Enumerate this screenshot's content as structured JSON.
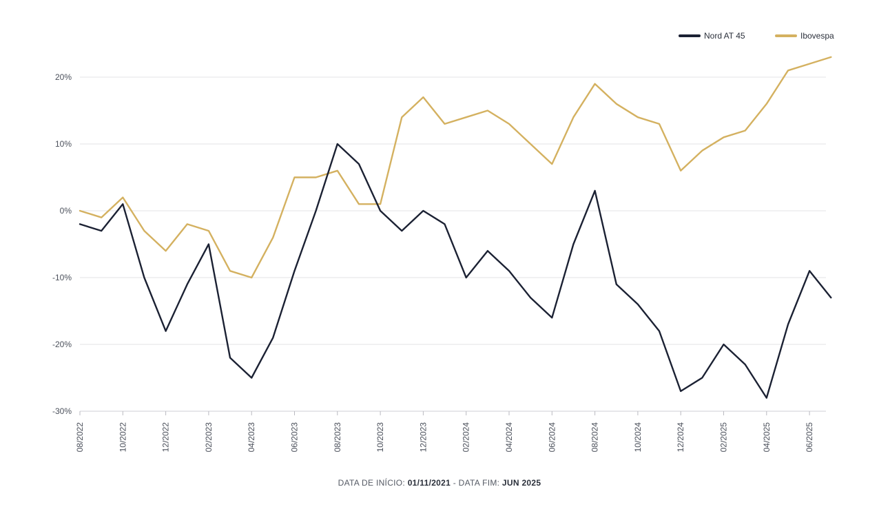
{
  "chart_data": {
    "type": "line",
    "x": [
      "08/2022",
      "09/2022",
      "10/2022",
      "11/2022",
      "12/2022",
      "01/2023",
      "02/2023",
      "03/2023",
      "04/2023",
      "05/2023",
      "06/2023",
      "07/2023",
      "08/2023",
      "09/2023",
      "10/2023",
      "11/2023",
      "12/2023",
      "01/2024",
      "02/2024",
      "03/2024",
      "04/2024",
      "05/2024",
      "06/2024",
      "07/2024",
      "08/2024",
      "09/2024",
      "10/2024",
      "11/2024",
      "12/2024",
      "01/2025",
      "02/2025",
      "03/2025",
      "04/2025",
      "05/2025",
      "06/2025",
      "07/2025"
    ],
    "x_tick_labels": [
      "08/2022",
      "10/2022",
      "12/2022",
      "02/2023",
      "04/2023",
      "06/2023",
      "08/2023",
      "10/2023",
      "12/2023",
      "02/2024",
      "04/2024",
      "06/2024",
      "08/2024",
      "10/2024",
      "12/2024",
      "02/2025",
      "04/2025",
      "06/2025"
    ],
    "y_tick_labels": [
      "20%",
      "10%",
      "0%",
      "-10%",
      "-20%",
      "-30%"
    ],
    "y_ticks": [
      20,
      10,
      0,
      -10,
      -20,
      -30
    ],
    "ylim": [
      -30,
      25
    ],
    "grid": true,
    "legend_position": "top-right",
    "series": [
      {
        "name": "Nord AT 45",
        "color": "#1b2133",
        "values": [
          -2,
          -3,
          1,
          -10,
          -18,
          -11,
          -5,
          -22,
          -25,
          -19,
          -9,
          0,
          10,
          7,
          0,
          -3,
          0,
          -2,
          -10,
          -6,
          -9,
          -13,
          -16,
          -5,
          3,
          -11,
          -14,
          -18,
          -27,
          -25,
          -20,
          -23,
          -28,
          -17,
          -9,
          -13
        ]
      },
      {
        "name": "Ibovespa",
        "color": "#d4b160",
        "values": [
          0,
          -1,
          2,
          -3,
          -6,
          -2,
          -3,
          -9,
          -10,
          -4,
          5,
          5,
          6,
          1,
          1,
          14,
          17,
          13,
          14,
          15,
          13,
          10,
          7,
          14,
          19,
          16,
          14,
          13,
          6,
          9,
          11,
          12,
          16,
          21,
          22,
          23
        ]
      }
    ]
  },
  "footer": {
    "prefix": "DATA DE INÍCIO: ",
    "start": "01/11/2021",
    "middle": " - DATA FIM: ",
    "end": "JUN 2025"
  }
}
